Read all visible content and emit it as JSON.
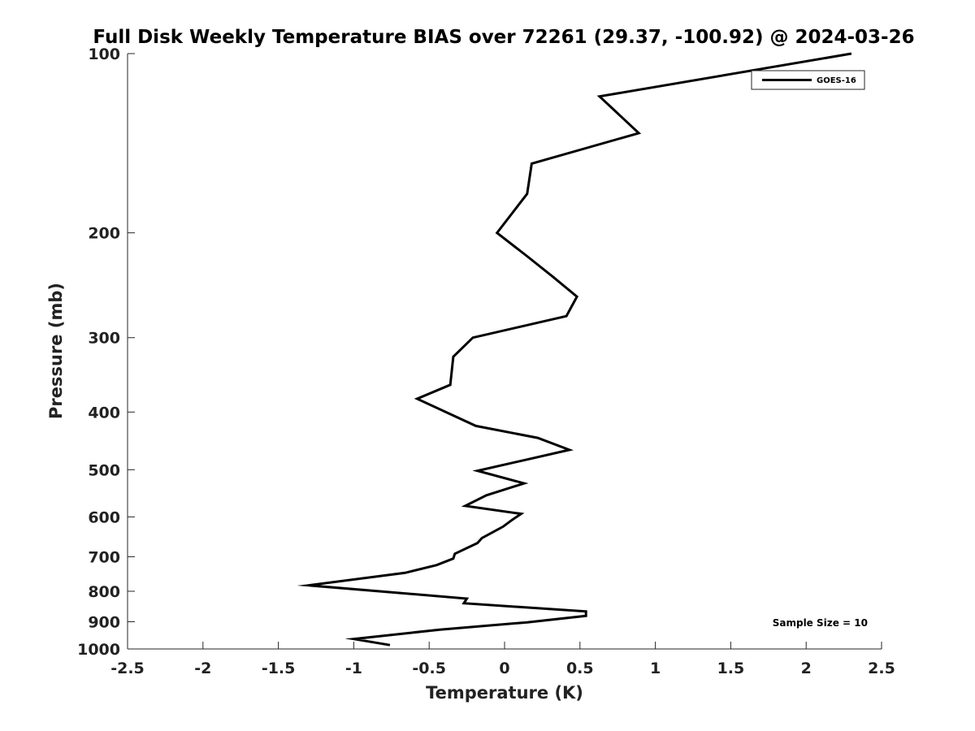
{
  "chart_data": {
    "type": "line",
    "title": "Full Disk Weekly Temperature BIAS over 72261 (29.37, -100.92) @ 2024-03-26",
    "xlabel": "Temperature (K)",
    "ylabel": "Pressure (mb)",
    "xlim": [
      -2.5,
      2.5
    ],
    "ylim": [
      1000,
      100
    ],
    "yscale": "log",
    "yreverse": true,
    "xticks": [
      -2.5,
      -2,
      -1.5,
      -1,
      -0.5,
      0,
      0.5,
      1,
      1.5,
      2,
      2.5
    ],
    "xtick_labels": [
      "-2.5",
      "-2",
      "-1.5",
      "-1",
      "-0.5",
      "0",
      "0.5",
      "1",
      "1.5",
      "2",
      "2.5"
    ],
    "yticks": [
      100,
      200,
      300,
      400,
      500,
      600,
      700,
      800,
      900,
      1000
    ],
    "ytick_labels": [
      "100",
      "200",
      "300",
      "400",
      "500",
      "600",
      "700",
      "800",
      "900",
      "1000"
    ],
    "grid": false,
    "legend": {
      "position": "top-right",
      "entries": [
        "GOES-16"
      ]
    },
    "annotations": [
      {
        "text": "Sample Size = 10",
        "position": "bottom-right"
      }
    ],
    "series": [
      {
        "name": "GOES-16",
        "color": "#000000",
        "points": [
          {
            "x": 2.3,
            "y": 100
          },
          {
            "x": 0.63,
            "y": 118
          },
          {
            "x": 0.89,
            "y": 136
          },
          {
            "x": 0.18,
            "y": 153
          },
          {
            "x": 0.15,
            "y": 172
          },
          {
            "x": -0.05,
            "y": 200
          },
          {
            "x": 0.15,
            "y": 219
          },
          {
            "x": 0.32,
            "y": 237
          },
          {
            "x": 0.48,
            "y": 256
          },
          {
            "x": 0.41,
            "y": 276
          },
          {
            "x": -0.21,
            "y": 300
          },
          {
            "x": -0.34,
            "y": 323
          },
          {
            "x": -0.36,
            "y": 360
          },
          {
            "x": -0.58,
            "y": 380
          },
          {
            "x": -0.19,
            "y": 422
          },
          {
            "x": 0.22,
            "y": 442
          },
          {
            "x": 0.43,
            "y": 463
          },
          {
            "x": 0.16,
            "y": 480
          },
          {
            "x": -0.18,
            "y": 502
          },
          {
            "x": 0.13,
            "y": 527
          },
          {
            "x": -0.12,
            "y": 552
          },
          {
            "x": -0.26,
            "y": 575
          },
          {
            "x": 0.11,
            "y": 593
          },
          {
            "x": 0.05,
            "y": 607
          },
          {
            "x": -0.01,
            "y": 623
          },
          {
            "x": -0.15,
            "y": 651
          },
          {
            "x": -0.18,
            "y": 664
          },
          {
            "x": -0.33,
            "y": 692
          },
          {
            "x": -0.34,
            "y": 705
          },
          {
            "x": -0.45,
            "y": 723
          },
          {
            "x": -0.66,
            "y": 745
          },
          {
            "x": -1.3,
            "y": 782
          },
          {
            "x": -0.25,
            "y": 823
          },
          {
            "x": -0.27,
            "y": 838
          },
          {
            "x": 0.54,
            "y": 865
          },
          {
            "x": 0.54,
            "y": 880
          },
          {
            "x": 0.15,
            "y": 902
          },
          {
            "x": -0.43,
            "y": 928
          },
          {
            "x": -1.0,
            "y": 962
          },
          {
            "x": -0.76,
            "y": 985
          }
        ]
      }
    ]
  }
}
